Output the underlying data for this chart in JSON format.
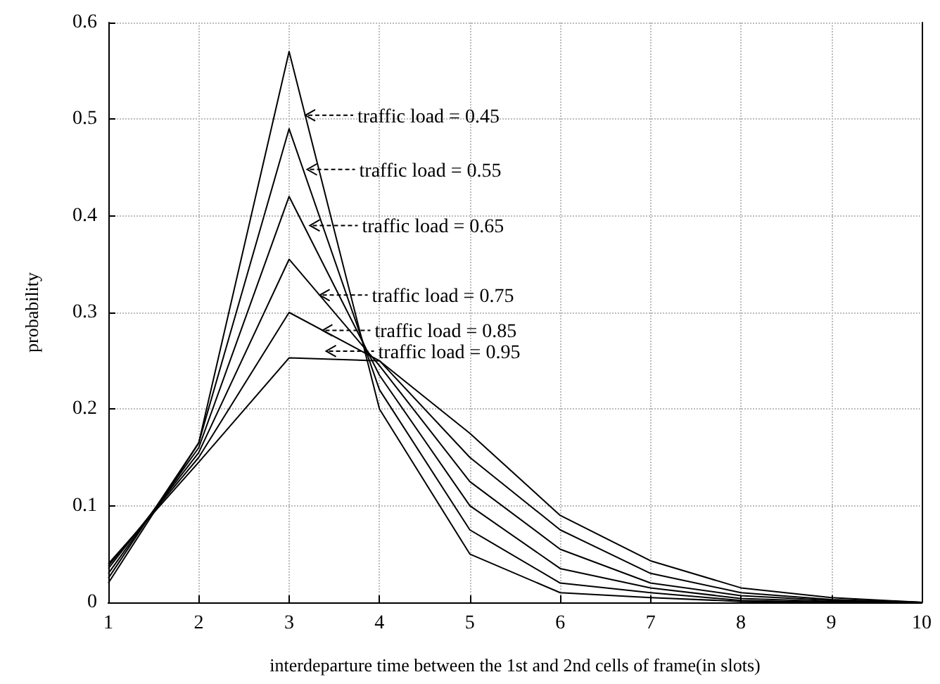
{
  "chart_data": {
    "type": "line",
    "xlabel": "interdeparture time between the 1st and 2nd cells of frame(in slots)",
    "ylabel": "probability",
    "x": [
      1,
      2,
      3,
      4,
      5,
      6,
      7,
      8,
      9,
      10
    ],
    "series": [
      {
        "color": "#000000",
        "values": [
          0.02,
          0.165,
          0.57,
          0.2,
          0.05,
          0.01,
          0.005,
          0.001,
          0,
          0
        ]
      },
      {
        "color": "#000000",
        "values": [
          0.025,
          0.165,
          0.49,
          0.22,
          0.075,
          0.02,
          0.01,
          0.002,
          0,
          0
        ]
      },
      {
        "color": "#000000",
        "values": [
          0.03,
          0.16,
          0.42,
          0.235,
          0.1,
          0.035,
          0.015,
          0.004,
          0.001,
          0
        ]
      },
      {
        "color": "#000000",
        "values": [
          0.035,
          0.155,
          0.355,
          0.245,
          0.125,
          0.055,
          0.02,
          0.007,
          0.002,
          0
        ]
      },
      {
        "color": "#000000",
        "values": [
          0.038,
          0.15,
          0.3,
          0.25,
          0.15,
          0.075,
          0.03,
          0.01,
          0.003,
          0
        ]
      },
      {
        "color": "#000000",
        "values": [
          0.04,
          0.145,
          0.253,
          0.25,
          0.175,
          0.09,
          0.043,
          0.015,
          0.005,
          0
        ]
      }
    ],
    "annotations": [
      {
        "text": "traffic load = 0.45",
        "x": 3.18,
        "y": 0.504
      },
      {
        "text": "traffic load = 0.55",
        "x": 3.2,
        "y": 0.448
      },
      {
        "text": "traffic load = 0.65",
        "x": 3.23,
        "y": 0.39
      },
      {
        "text": "traffic load = 0.75",
        "x": 3.34,
        "y": 0.318
      },
      {
        "text": "traffic load = 0.85",
        "x": 3.37,
        "y": 0.2815
      },
      {
        "text": "traffic load = 0.95",
        "x": 3.41,
        "y": 0.26
      }
    ],
    "xlim": [
      1,
      10
    ],
    "xticks": [
      1,
      2,
      3,
      4,
      5,
      6,
      7,
      8,
      9,
      10
    ],
    "ylim": [
      0,
      0.6
    ],
    "yticks": [
      0,
      0.1,
      0.2,
      0.3,
      0.4,
      0.5,
      0.6
    ],
    "grid": true,
    "marker": "none",
    "line_style": "solid"
  }
}
